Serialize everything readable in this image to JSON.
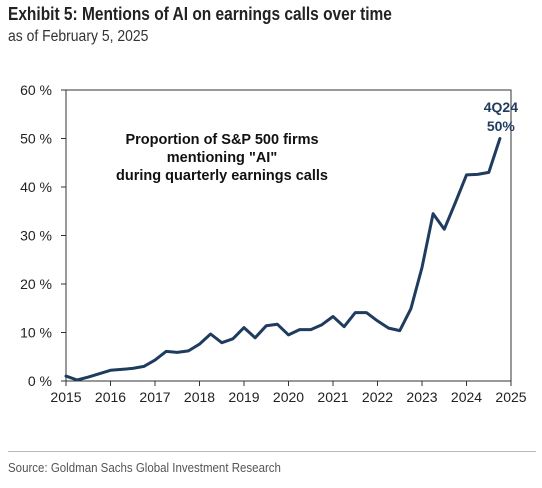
{
  "header": {
    "title": "Exhibit 5: Mentions of AI on earnings calls over time",
    "subtitle": "as of February 5, 2025"
  },
  "footer": {
    "source": "Source: Goldman Sachs Global Investment Research"
  },
  "colors": {
    "line": "#1f3c5f",
    "axis": "#333333",
    "divider": "#bbbbbb"
  },
  "chart_data": {
    "type": "line",
    "annotation_lines": [
      "Proportion of S&P 500 firms",
      "mentioning \"AI\"",
      "during quarterly earnings calls"
    ],
    "end_label_lines": [
      "4Q24",
      "50%"
    ],
    "xlim": [
      2015,
      2025
    ],
    "ylim": [
      0,
      60
    ],
    "x_ticks": [
      2015,
      2016,
      2017,
      2018,
      2019,
      2020,
      2021,
      2022,
      2023,
      2024,
      2025
    ],
    "y_ticks": [
      0,
      10,
      20,
      30,
      40,
      50,
      60
    ],
    "y_tick_labels": [
      "0 %",
      "10 %",
      "20 %",
      "30 %",
      "40 %",
      "50 %",
      "60 %"
    ],
    "grid": false,
    "series": [
      {
        "x": [
          2015.0,
          2015.25,
          2015.5,
          2015.75,
          2016.0,
          2016.25,
          2016.5,
          2016.75,
          2017.0,
          2017.25,
          2017.5,
          2017.75,
          2018.0,
          2018.25,
          2018.5,
          2018.75,
          2019.0,
          2019.25,
          2019.5,
          2019.75,
          2020.0,
          2020.25,
          2020.5,
          2020.75,
          2021.0,
          2021.25,
          2021.5,
          2021.75,
          2022.0,
          2022.25,
          2022.5,
          2022.75,
          2023.0,
          2023.25,
          2023.5,
          2023.75,
          2024.0,
          2024.25,
          2024.5,
          2024.75
        ],
        "values": [
          1.0,
          0.2,
          0.8,
          1.5,
          2.2,
          2.4,
          2.6,
          3.0,
          4.3,
          6.1,
          5.9,
          6.2,
          7.6,
          9.7,
          7.9,
          8.7,
          11.0,
          8.9,
          11.4,
          11.7,
          9.5,
          10.6,
          10.6,
          11.6,
          13.3,
          11.2,
          14.1,
          14.1,
          12.4,
          10.9,
          10.4,
          14.9,
          23.4,
          34.5,
          31.3,
          36.8,
          42.5,
          42.6,
          43.0,
          50.0
        ]
      }
    ]
  }
}
